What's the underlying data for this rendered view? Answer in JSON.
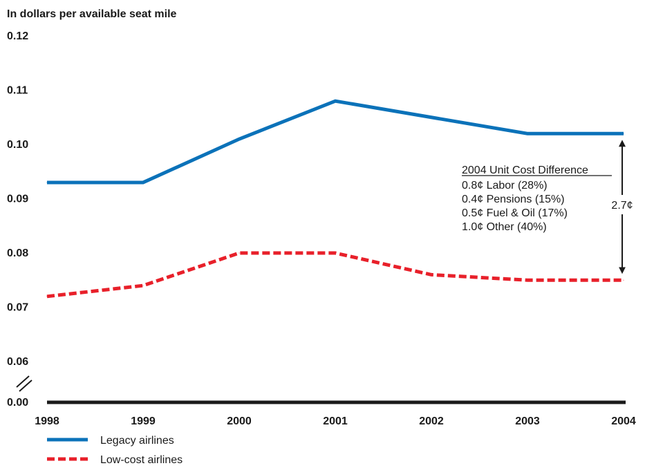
{
  "chart_data": {
    "type": "line",
    "title": "",
    "ylabel": "In dollars per available seat mile",
    "xlabel": "",
    "categories": [
      "1998",
      "1999",
      "2000",
      "2001",
      "2002",
      "2003",
      "2004"
    ],
    "y_ticks": [
      "0.12",
      "0.11",
      "0.10",
      "0.09",
      "0.08",
      "0.07",
      "0.06",
      "0.00"
    ],
    "axis_break": true,
    "grid": false,
    "legend_placement": "bottom-left",
    "series": [
      {
        "name": "Legacy airlines",
        "color": "#0b72b9",
        "style": "solid",
        "values": [
          0.093,
          0.093,
          0.101,
          0.108,
          0.105,
          0.102,
          0.102
        ]
      },
      {
        "name": "Low-cost airlines",
        "color": "#e8202a",
        "style": "dashed",
        "values": [
          0.072,
          0.074,
          0.08,
          0.08,
          0.076,
          0.075,
          0.075
        ]
      }
    ],
    "annotation": {
      "heading": "2004 Unit Cost Difference",
      "lines": [
        "0.8¢ Labor (28%)",
        "0.4¢ Pensions (15%)",
        "0.5¢ Fuel & Oil (17%)",
        "1.0¢ Other (40%)"
      ],
      "difference_label": "2.7¢"
    }
  }
}
